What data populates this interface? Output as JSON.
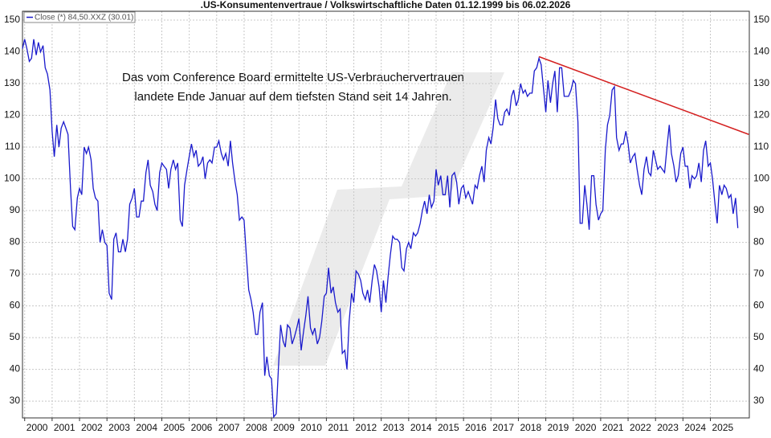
{
  "chart_data": {
    "type": "line",
    "title": ".US-Konsumentenvertraue / Volkswirtschaftliche Daten 01.12.1999 bis 06.02.2026",
    "annotation": [
      "Das vom Conference Board ermittelte US-Verbrauchervertrauen",
      "landete Ende Januar auf dem tiefsten Stand seit 14 Jahren."
    ],
    "xlim": [
      1999.92,
      2026.42
    ],
    "xticks": [
      2000,
      2001,
      2002,
      2003,
      2004,
      2005,
      2006,
      2007,
      2008,
      2009,
      2010,
      2011,
      2012,
      2013,
      2014,
      2015,
      2016,
      2017,
      2018,
      2019,
      2020,
      2021,
      2022,
      2023,
      2024,
      2025
    ],
    "ylim": [
      24.7,
      152.8
    ],
    "yticks": [
      30,
      40,
      50,
      60,
      70,
      80,
      90,
      100,
      110,
      120,
      130,
      140,
      150
    ],
    "grid": true,
    "series": [
      {
        "name": "Close (*) 84,50.XXZ (30.01)",
        "color": "#1a1acc",
        "x": [
          1999.92,
          2000.0,
          2000.08,
          2000.17,
          2000.25,
          2000.33,
          2000.42,
          2000.5,
          2000.58,
          2000.67,
          2000.75,
          2000.83,
          2000.92,
          2001.0,
          2001.08,
          2001.17,
          2001.25,
          2001.33,
          2001.42,
          2001.5,
          2001.58,
          2001.67,
          2001.75,
          2001.83,
          2001.92,
          2002.0,
          2002.08,
          2002.17,
          2002.25,
          2002.33,
          2002.42,
          2002.5,
          2002.58,
          2002.67,
          2002.75,
          2002.83,
          2002.92,
          2003.0,
          2003.08,
          2003.17,
          2003.25,
          2003.33,
          2003.42,
          2003.5,
          2003.58,
          2003.67,
          2003.75,
          2003.83,
          2003.92,
          2004.0,
          2004.08,
          2004.17,
          2004.25,
          2004.33,
          2004.42,
          2004.5,
          2004.58,
          2004.67,
          2004.75,
          2004.83,
          2004.92,
          2005.0,
          2005.08,
          2005.17,
          2005.25,
          2005.33,
          2005.42,
          2005.5,
          2005.58,
          2005.67,
          2005.75,
          2005.83,
          2005.92,
          2006.0,
          2006.08,
          2006.17,
          2006.25,
          2006.33,
          2006.42,
          2006.5,
          2006.58,
          2006.67,
          2006.75,
          2006.83,
          2006.92,
          2007.0,
          2007.08,
          2007.17,
          2007.25,
          2007.33,
          2007.42,
          2007.5,
          2007.58,
          2007.67,
          2007.75,
          2007.83,
          2007.92,
          2008.0,
          2008.08,
          2008.17,
          2008.25,
          2008.33,
          2008.42,
          2008.5,
          2008.58,
          2008.67,
          2008.75,
          2008.83,
          2008.92,
          2009.0,
          2009.08,
          2009.17,
          2009.25,
          2009.33,
          2009.42,
          2009.5,
          2009.58,
          2009.67,
          2009.75,
          2009.83,
          2009.92,
          2010.0,
          2010.08,
          2010.17,
          2010.25,
          2010.33,
          2010.42,
          2010.5,
          2010.58,
          2010.67,
          2010.75,
          2010.83,
          2010.92,
          2011.0,
          2011.08,
          2011.17,
          2011.25,
          2011.33,
          2011.42,
          2011.5,
          2011.58,
          2011.67,
          2011.75,
          2011.83,
          2011.92,
          2012.0,
          2012.08,
          2012.17,
          2012.25,
          2012.33,
          2012.42,
          2012.5,
          2012.58,
          2012.67,
          2012.75,
          2012.83,
          2012.92,
          2013.0,
          2013.08,
          2013.17,
          2013.25,
          2013.33,
          2013.42,
          2013.5,
          2013.58,
          2013.67,
          2013.75,
          2013.83,
          2013.92,
          2014.0,
          2014.08,
          2014.17,
          2014.25,
          2014.33,
          2014.42,
          2014.5,
          2014.58,
          2014.67,
          2014.75,
          2014.83,
          2014.92,
          2015.0,
          2015.08,
          2015.17,
          2015.25,
          2015.33,
          2015.42,
          2015.5,
          2015.58,
          2015.67,
          2015.75,
          2015.83,
          2015.92,
          2016.0,
          2016.08,
          2016.17,
          2016.25,
          2016.33,
          2016.42,
          2016.5,
          2016.58,
          2016.67,
          2016.75,
          2016.83,
          2016.92,
          2017.0,
          2017.08,
          2017.17,
          2017.25,
          2017.33,
          2017.42,
          2017.5,
          2017.58,
          2017.67,
          2017.75,
          2017.83,
          2017.92,
          2018.0,
          2018.08,
          2018.17,
          2018.25,
          2018.33,
          2018.42,
          2018.5,
          2018.58,
          2018.67,
          2018.75,
          2018.83,
          2018.92,
          2019.0,
          2019.08,
          2019.17,
          2019.25,
          2019.33,
          2019.42,
          2019.5,
          2019.58,
          2019.67,
          2019.75,
          2019.83,
          2019.92,
          2020.0,
          2020.08,
          2020.17,
          2020.25,
          2020.33,
          2020.42,
          2020.5,
          2020.58,
          2020.67,
          2020.75,
          2020.83,
          2020.92,
          2021.0,
          2021.08,
          2021.17,
          2021.25,
          2021.33,
          2021.42,
          2021.5,
          2021.58,
          2021.67,
          2021.75,
          2021.83,
          2021.92,
          2022.0,
          2022.08,
          2022.17,
          2022.25,
          2022.33,
          2022.42,
          2022.5,
          2022.58,
          2022.67,
          2022.75,
          2022.83,
          2022.92,
          2023.0,
          2023.08,
          2023.17,
          2023.25,
          2023.33,
          2023.42,
          2023.5,
          2023.58,
          2023.67,
          2023.75,
          2023.83,
          2023.92,
          2024.0,
          2024.08,
          2024.17,
          2024.25,
          2024.33,
          2024.42,
          2024.5,
          2024.58,
          2024.67,
          2024.75,
          2024.83,
          2024.92,
          2025.0,
          2025.08,
          2025.17,
          2025.25,
          2025.33,
          2025.42,
          2025.5,
          2025.58,
          2025.67,
          2025.75,
          2025.83,
          2025.92,
          2026.0
        ],
        "values": [
          141,
          144,
          141,
          137,
          138,
          144,
          139,
          143,
          140,
          142,
          135,
          133,
          128,
          115,
          107,
          117,
          110,
          116,
          118,
          116,
          114,
          97,
          85,
          84,
          94,
          97,
          95,
          110,
          108,
          110,
          106,
          97,
          94,
          93,
          80,
          84,
          80,
          79,
          64,
          62,
          81,
          83,
          77,
          77,
          81,
          77,
          81,
          92,
          94,
          97,
          88,
          88,
          93,
          93,
          102,
          106,
          98,
          96,
          92,
          90,
          102,
          105,
          104,
          103,
          97,
          103,
          106,
          103,
          105,
          87,
          85,
          98,
          103,
          107,
          111,
          107,
          109,
          104,
          105,
          107,
          100,
          105,
          106,
          105,
          110,
          110,
          112,
          108,
          106,
          108,
          104,
          112,
          105,
          99,
          95,
          87,
          88,
          87,
          76,
          65,
          62,
          58,
          51,
          51,
          58,
          61,
          38,
          44,
          38,
          37,
          25,
          26,
          40,
          54,
          49,
          47,
          54,
          53,
          48,
          50,
          53,
          56,
          46,
          52,
          57,
          63,
          53,
          51,
          53,
          48,
          50,
          55,
          63,
          64,
          72,
          64,
          66,
          61,
          58,
          59,
          45,
          46,
          40,
          55,
          64,
          61,
          71,
          70,
          68,
          64,
          62,
          65,
          61,
          68,
          73,
          71,
          66,
          58,
          68,
          61,
          69,
          76,
          82,
          81,
          81,
          80,
          72,
          71,
          78,
          80,
          78,
          83,
          82,
          83,
          86,
          90,
          93,
          89,
          95,
          91,
          93,
          103,
          98,
          101,
          95,
          95,
          101,
          91,
          101,
          102,
          99,
          92,
          97,
          98,
          94,
          96,
          94,
          92,
          98,
          97,
          101,
          104,
          99,
          109,
          113,
          111,
          116,
          125,
          119,
          117,
          117,
          121,
          122,
          120,
          126,
          128,
          123,
          125,
          130,
          127,
          128,
          126,
          127,
          127,
          134,
          135,
          138,
          136,
          128,
          121,
          131,
          124,
          130,
          134,
          121,
          135,
          135,
          126,
          126,
          126,
          128,
          131,
          130,
          118,
          86,
          86,
          98,
          92,
          84,
          101,
          101,
          92,
          87,
          89,
          90,
          109,
          117,
          120,
          128,
          129,
          113,
          109,
          111,
          111,
          115,
          111,
          105,
          107,
          108,
          103,
          98,
          95,
          103,
          107,
          102,
          101,
          109,
          106,
          103,
          104,
          103,
          102,
          110,
          117,
          108,
          104,
          99,
          101,
          108,
          110,
          104,
          104,
          97,
          101,
          100,
          101,
          105,
          99,
          109,
          112,
          104,
          105,
          100,
          92,
          86,
          98,
          95,
          98,
          97,
          94,
          95,
          89,
          94,
          84.5
        ]
      }
    ],
    "trendline": {
      "x": [
        2018.75,
        2026.4
      ],
      "values": [
        138.5,
        114
      ],
      "color": "#d42020"
    }
  }
}
